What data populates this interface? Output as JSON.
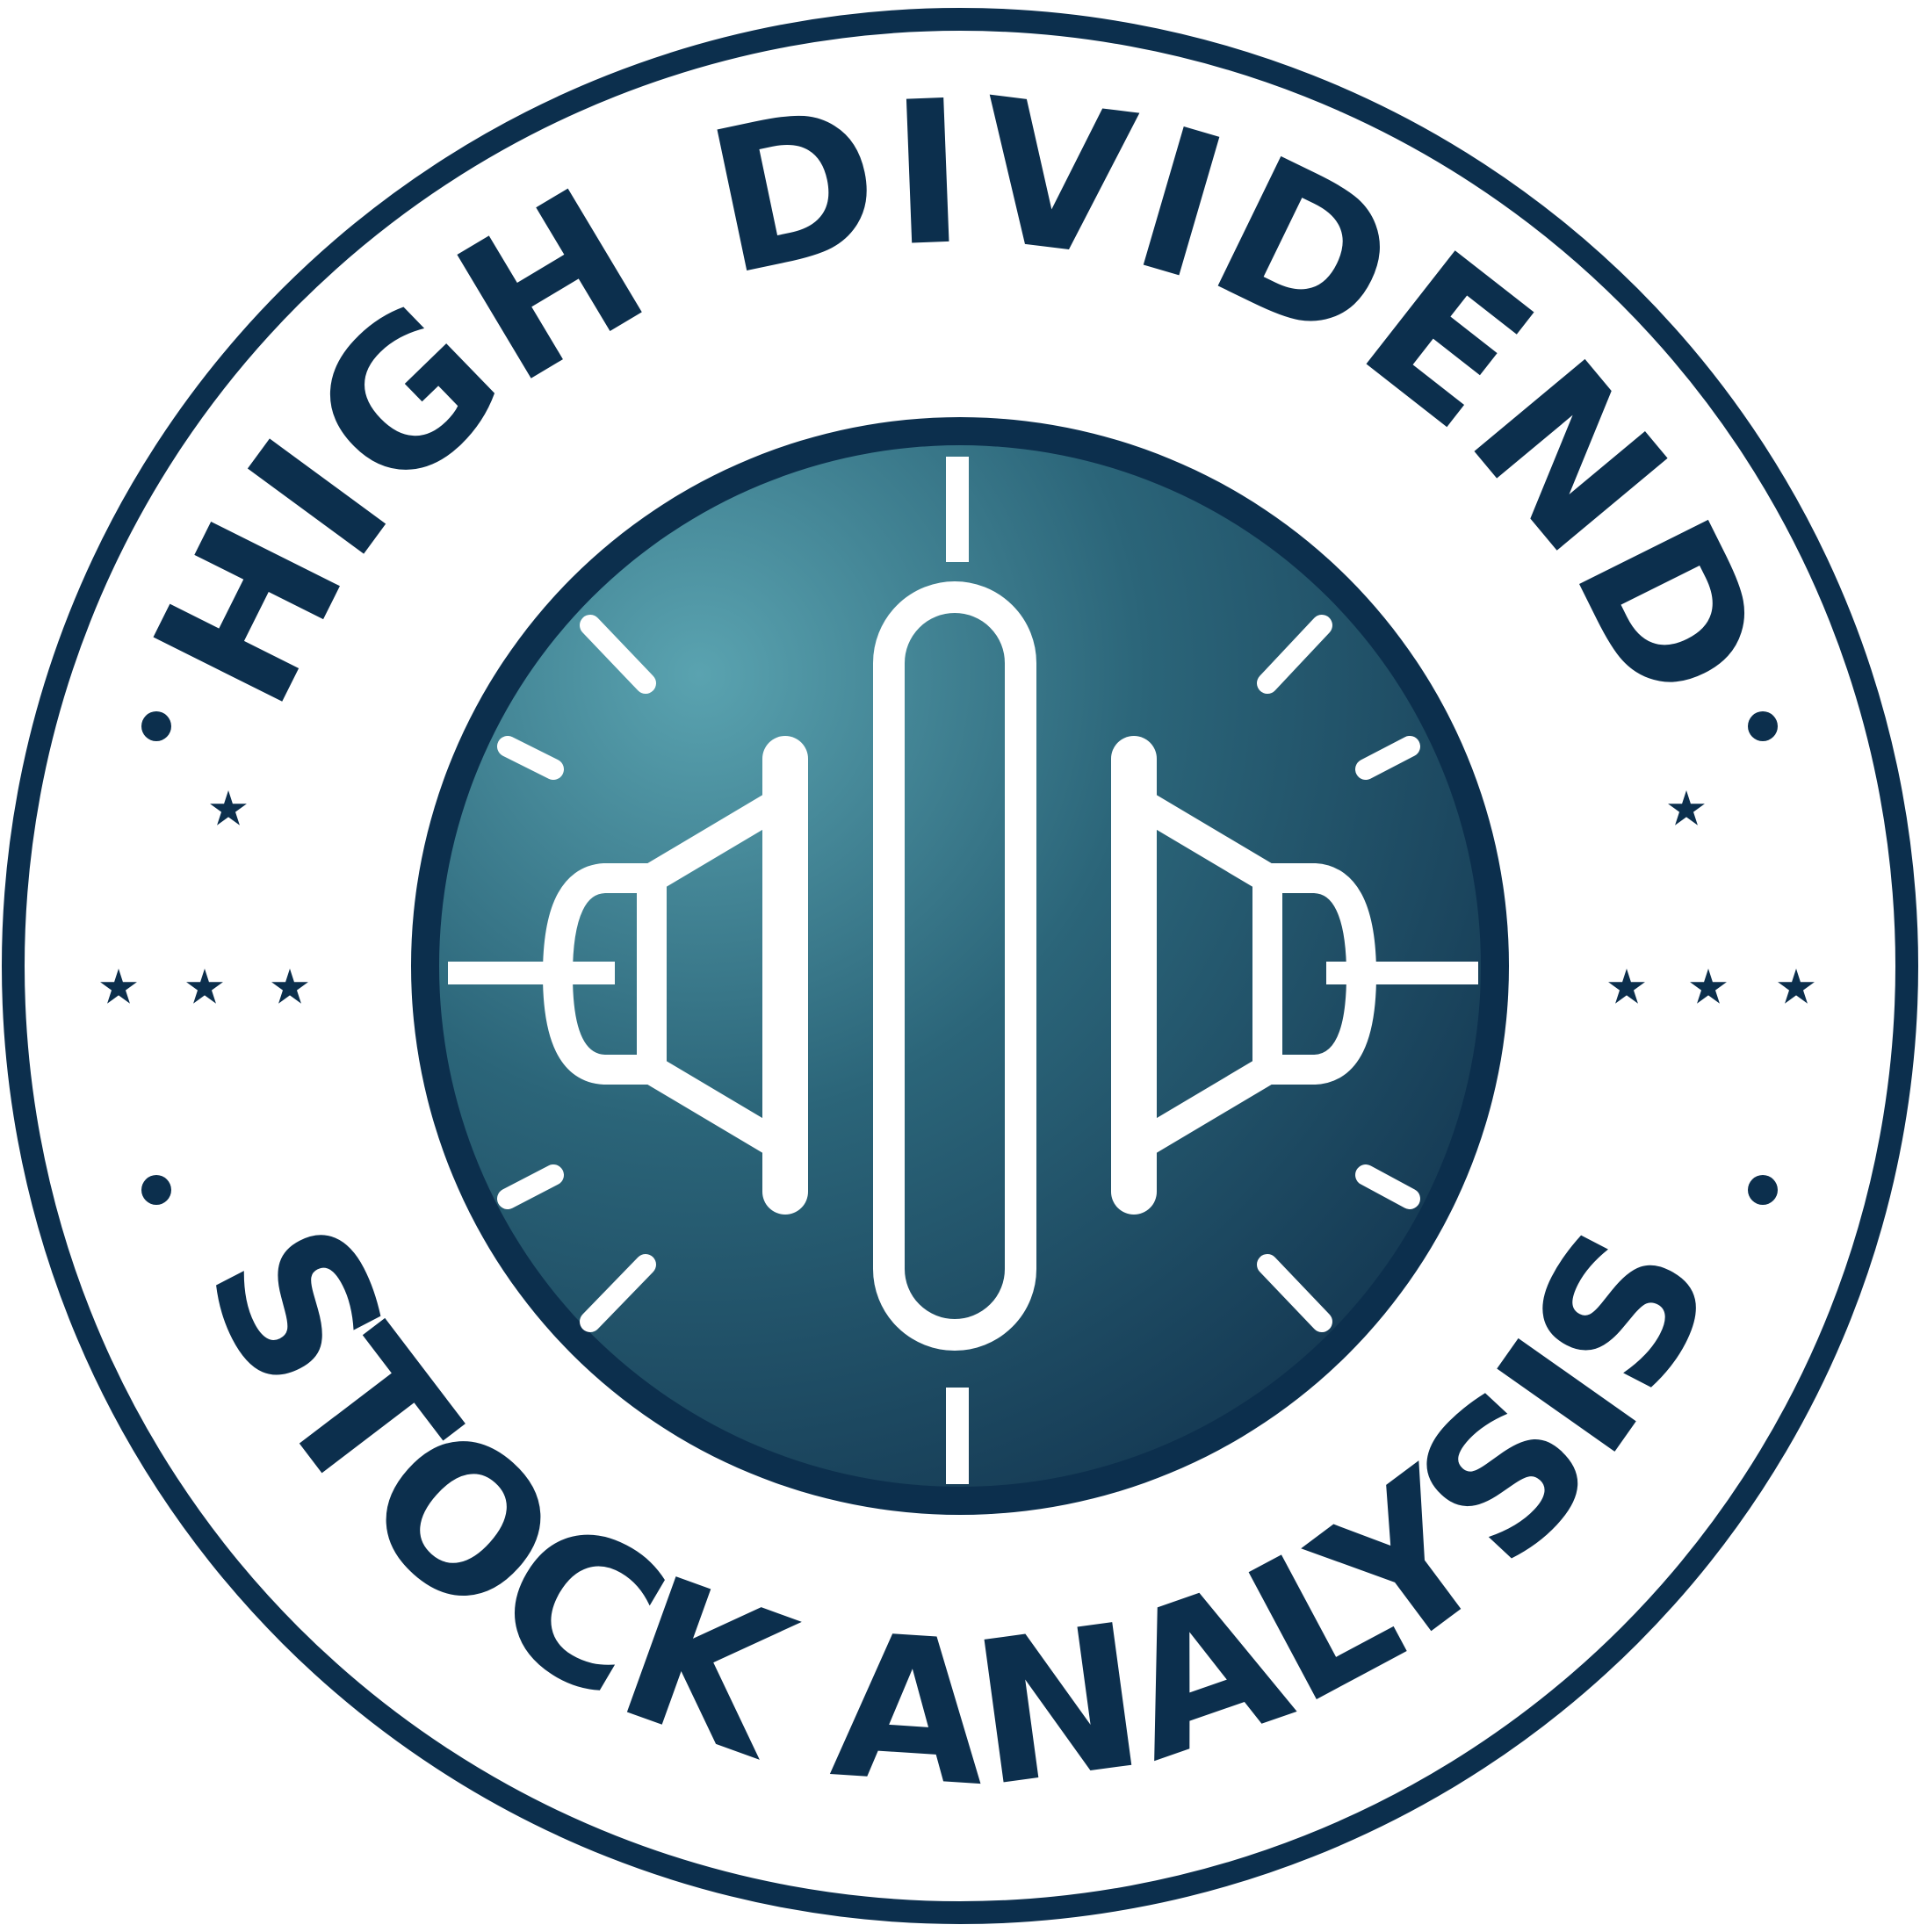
{
  "badge": {
    "top_text": "HIGH DIVIDEND",
    "bottom_text": "STOCK ANALYSIS",
    "center_icon": "candlestick-chart-icon",
    "colors": {
      "navy": "#0c2f4d",
      "teal_light": "#4f98a6",
      "teal_mid": "#2e6b80",
      "teal_dark": "#153e58",
      "white": "#ffffff"
    }
  }
}
